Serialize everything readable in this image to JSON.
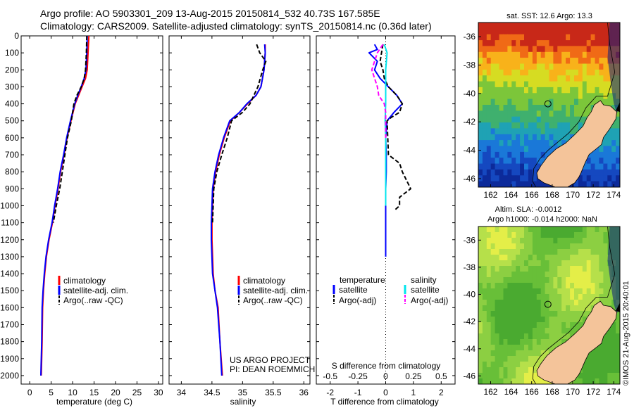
{
  "header": {
    "line1": "Argo profile: AO 5903301_209 13-Aug-2015 20150814_532 40.73S 167.585E",
    "line2": "Climatology: CARS2009. Satellite-adjusted climatology: synTS_20150814.nc (0.36d later)"
  },
  "colors": {
    "climatology": "#ff0000",
    "satellite": "#0000ff",
    "argo": "#000000",
    "satellite_s": "#00e5ee",
    "argo_s": "#ff00ff",
    "land": "#f4c49a"
  },
  "chart_data": [
    {
      "type": "line",
      "panel": "temperature",
      "xlabel": "temperature (deg C)",
      "ylabel": "",
      "xlim": [
        -2,
        31
      ],
      "ylim": [
        0,
        2050
      ],
      "xticks": [
        "0",
        "5",
        "10",
        "15",
        "20",
        "25",
        "30"
      ],
      "yticks": [
        "0",
        "100",
        "200",
        "300",
        "400",
        "500",
        "600",
        "700",
        "800",
        "900",
        "1000",
        "1100",
        "1200",
        "1300",
        "1400",
        "1500",
        "1600",
        "1700",
        "1800",
        "1900",
        "2000"
      ],
      "legend": [
        "climatology",
        "satellite-adj. clim.",
        "Argo(..raw -QC)"
      ],
      "series": [
        {
          "name": "climatology",
          "x": [
            13.8,
            13.6,
            13.4,
            13.0,
            12.2,
            11.4,
            10.6,
            9.6,
            8.7,
            8.0,
            7.2,
            6.6,
            5.9,
            5.3,
            4.5,
            3.9,
            3.5,
            3.2,
            3.0,
            2.9,
            2.7
          ],
          "y": [
            0,
            100,
            200,
            250,
            300,
            350,
            400,
            500,
            600,
            700,
            800,
            900,
            1000,
            1100,
            1200,
            1300,
            1400,
            1500,
            1600,
            1800,
            2000
          ]
        },
        {
          "name": "satellite-adj. clim.",
          "x": [
            13.4,
            13.3,
            13.1,
            12.7,
            12.0,
            11.2,
            10.5,
            9.5,
            8.6,
            7.9,
            7.1,
            6.5,
            5.8,
            5.2,
            4.4,
            3.8,
            3.4,
            3.1,
            2.9,
            2.8,
            2.6
          ],
          "y": [
            0,
            100,
            200,
            250,
            300,
            350,
            400,
            500,
            600,
            700,
            800,
            900,
            1000,
            1100,
            1200,
            1300,
            1400,
            1500,
            1600,
            1800,
            2000
          ]
        },
        {
          "name": "Argo(..raw -QC)",
          "x": [
            13.3,
            13.2,
            13.0,
            12.7,
            12.0,
            11.0,
            10.3,
            9.7,
            8.8,
            8.2,
            7.6,
            7.0,
            6.2,
            5.5
          ],
          "y": [
            0,
            100,
            200,
            250,
            300,
            350,
            400,
            500,
            600,
            700,
            800,
            900,
            1000,
            1100
          ]
        }
      ]
    },
    {
      "type": "line",
      "panel": "salinity",
      "xlabel": "salinity",
      "ylabel": "",
      "xlim": [
        33.8,
        36.1
      ],
      "ylim": [
        0,
        2050
      ],
      "xticks": [
        "34",
        "34.5",
        "35",
        "35.5",
        "36"
      ],
      "legend": [
        "climatology",
        "satellite-adj. clim.",
        "Argo(..raw -QC)"
      ],
      "annotation": [
        "US ARGO PROJECT",
        "PI: DEAN ROEMMICH"
      ],
      "series": [
        {
          "name": "climatology",
          "x": [
            35.37,
            35.37,
            35.35,
            35.3,
            35.22,
            35.08,
            34.95,
            34.8,
            34.7,
            34.62,
            34.56,
            34.52,
            34.51,
            34.5,
            34.5,
            34.52,
            34.55,
            34.6,
            34.63,
            34.67
          ],
          "y": [
            50,
            100,
            200,
            300,
            350,
            400,
            450,
            500,
            600,
            700,
            800,
            900,
            1000,
            1100,
            1200,
            1400,
            1500,
            1600,
            1800,
            2000
          ]
        },
        {
          "name": "satellite-adj. clim.",
          "x": [
            35.36,
            35.37,
            35.35,
            35.3,
            35.22,
            35.07,
            34.95,
            34.79,
            34.69,
            34.61,
            34.55,
            34.51,
            34.5,
            34.49,
            34.49,
            34.51,
            34.55,
            34.59,
            34.63,
            34.66
          ],
          "y": [
            50,
            100,
            200,
            300,
            350,
            400,
            450,
            500,
            600,
            700,
            800,
            900,
            1000,
            1100,
            1200,
            1400,
            1500,
            1600,
            1800,
            2000
          ]
        },
        {
          "name": "Argo(..raw -QC)",
          "x": [
            35.23,
            35.28,
            35.38,
            35.33,
            35.25,
            35.12,
            35.0,
            34.82,
            34.75,
            34.66,
            34.58,
            34.53,
            34.52,
            34.51
          ],
          "y": [
            50,
            100,
            150,
            200,
            300,
            400,
            450,
            500,
            600,
            700,
            800,
            900,
            1000,
            1100
          ]
        }
      ]
    },
    {
      "type": "line",
      "panel": "difference",
      "xlabel": "T difference from climatology",
      "xlabel2": "S difference from climatology",
      "xlim": [
        -2.5,
        2.5
      ],
      "ylim": [
        0,
        2050
      ],
      "xticks": [
        "-2",
        "-1",
        "0",
        "1",
        "2"
      ],
      "xticks_s": [
        "-0.5",
        "-0.25",
        "0",
        "0.25",
        "0.5"
      ],
      "legend_heads": [
        "temperature",
        "salinity"
      ],
      "legend": [
        "satellite",
        "Argo(-adj)",
        "satellite",
        "Argo(-adj)"
      ],
      "series": [
        {
          "name": "satellite",
          "x": [
            -0.4,
            -0.3,
            -0.6,
            -0.3,
            -0.4,
            -0.2,
            0.1,
            0.4,
            0.6,
            0.3,
            0.05,
            0.0,
            0.02,
            0.02,
            0.0,
            0.0,
            0.0,
            0.0,
            0.0
          ],
          "y": [
            50,
            80,
            100,
            150,
            200,
            250,
            300,
            350,
            400,
            450,
            500,
            600,
            700,
            800,
            900,
            1000,
            1100,
            1200,
            1300
          ]
        },
        {
          "name": "Argo(-adj)",
          "x": [
            -0.1,
            -0.15,
            -0.2,
            -0.1,
            -0.05,
            0.1,
            0.4,
            0.6,
            0.5,
            0.2,
            0.05,
            0.1,
            0.5,
            0.6,
            0.9,
            0.5,
            0.5,
            0.3
          ],
          "y": [
            50,
            100,
            150,
            200,
            250,
            300,
            350,
            400,
            450,
            480,
            500,
            700,
            750,
            800,
            900,
            950,
            1000,
            1030
          ]
        },
        {
          "name": "satellite",
          "x": [
            -0.05,
            0.05,
            0.0,
            0.0,
            0.0,
            -0.02,
            0.0,
            0.0,
            0.0,
            0.0
          ],
          "y": [
            50,
            100,
            200,
            300,
            400,
            500,
            600,
            700,
            800,
            1000
          ]
        },
        {
          "name": "Argo(-adj)",
          "x": [
            -0.1,
            -0.3,
            -0.5,
            -0.3,
            -0.25,
            -0.05,
            0.0,
            0.0,
            0.0
          ],
          "y": [
            50,
            100,
            200,
            300,
            350,
            400,
            450,
            500,
            600
          ]
        }
      ]
    }
  ],
  "maps": {
    "sst_title": "sat. SST: 12.6 Argo: 13.3",
    "sla_title1": "Altim. SLA: -0.0012",
    "sla_title2": "Argo h1000: -0.014 h2000: NaN",
    "lon_ticks": [
      "162",
      "164",
      "166",
      "168",
      "170",
      "172",
      "174"
    ],
    "lat_ticks": [
      "-36",
      "-38",
      "-40",
      "-42",
      "-44",
      "-46"
    ],
    "argo_position": {
      "lon": 167.585,
      "lat": -40.73
    }
  },
  "credit": "©IMOS 21-Aug-2015 20:40:01"
}
